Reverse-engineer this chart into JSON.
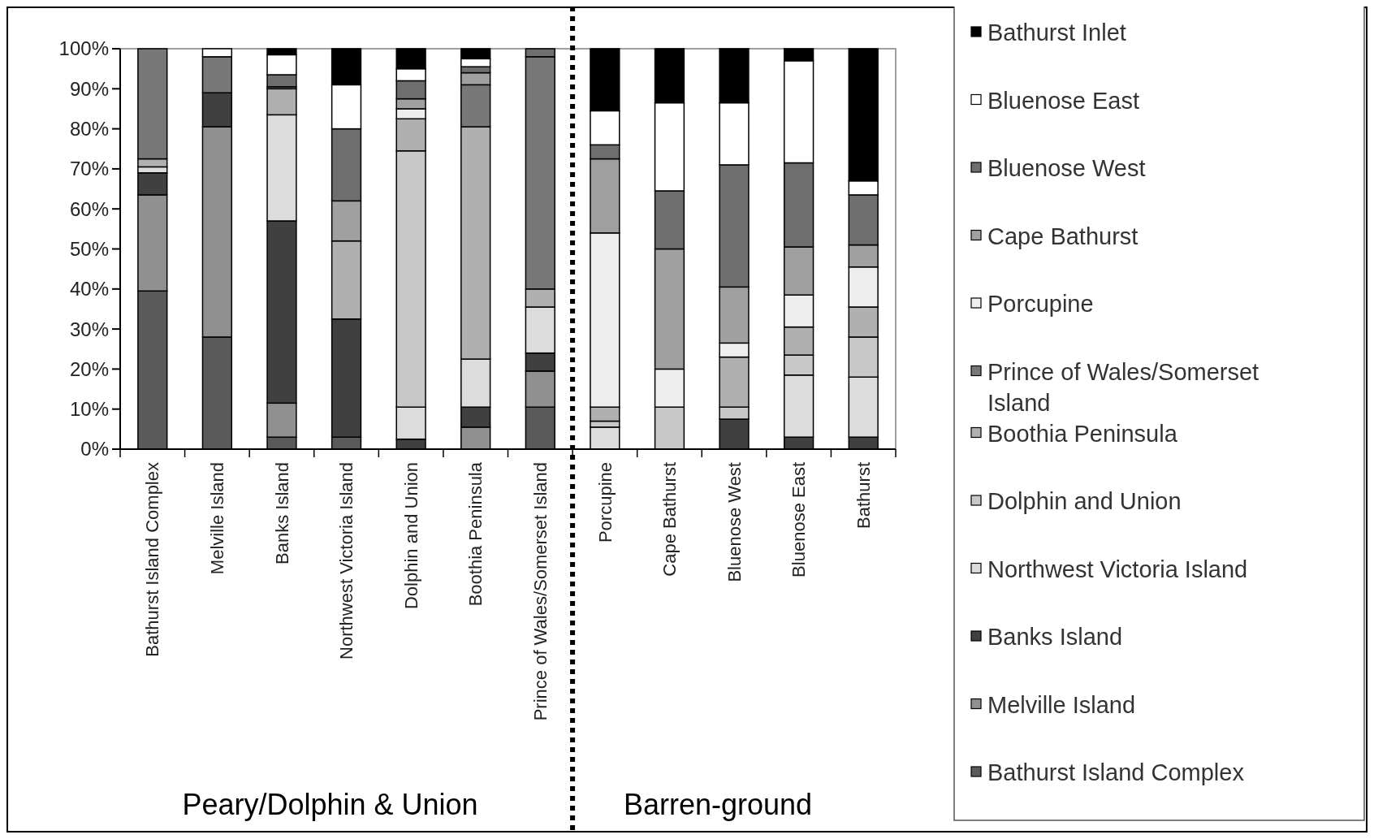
{
  "chart_data": {
    "type": "bar",
    "stacked": true,
    "legend": "right",
    "grid": false,
    "categories": [
      "Bathurst Island Complex",
      "Melville Island",
      "Banks Island",
      "Northwest Victoria Island",
      "Dolphin and Union",
      "Boothia Peninsula",
      "Prince of Wales/Somerset Island",
      "Porcupine",
      "Cape Bathurst",
      "Bluenose West",
      "Bluenose East",
      "Bathurst"
    ],
    "ylim": [
      0,
      100
    ],
    "yticks": [
      {
        "value": 0,
        "label": "0%"
      },
      {
        "value": 10,
        "label": "10%"
      },
      {
        "value": 20,
        "label": "20%"
      },
      {
        "value": 30,
        "label": "30%"
      },
      {
        "value": 40,
        "label": "40%"
      },
      {
        "value": 50,
        "label": "50%"
      },
      {
        "value": 60,
        "label": "60%"
      },
      {
        "value": 70,
        "label": "70%"
      },
      {
        "value": 80,
        "label": "80%"
      },
      {
        "value": 90,
        "label": "90%"
      },
      {
        "value": 100,
        "label": "100%"
      }
    ],
    "annotations": [
      "Peary/Dolphin & Union",
      "Barren-ground"
    ],
    "series": [
      {
        "name": "Bathurst Island Complex",
        "color": "#5a5a5a",
        "values": [
          39.5,
          28,
          3,
          3,
          null,
          null,
          10.5,
          null,
          null,
          null,
          null,
          null
        ]
      },
      {
        "name": "Melville Island",
        "color": "#909090",
        "values": [
          24,
          52.5,
          8.5,
          null,
          null,
          5.5,
          9,
          null,
          null,
          null,
          null,
          null
        ]
      },
      {
        "name": "Banks Island",
        "color": "#404040",
        "values": [
          5.5,
          8.5,
          45.5,
          29.5,
          2.5,
          5,
          4.5,
          null,
          null,
          7.5,
          3,
          3
        ]
      },
      {
        "name": "Northwest Victoria Island",
        "color": "#dcdcdc",
        "values": [
          1.5,
          null,
          26.5,
          null,
          8,
          12,
          11.5,
          5.5,
          null,
          null,
          15.5,
          15
        ]
      },
      {
        "name": "Dolphin and Union",
        "color": "#c8c8c8",
        "values": [
          null,
          null,
          null,
          null,
          64,
          null,
          null,
          1.5,
          10.5,
          3,
          5,
          10
        ]
      },
      {
        "name": "Boothia Peninsula",
        "color": "#b0b0b0",
        "values": [
          2,
          null,
          6.5,
          19.5,
          8,
          58,
          4.5,
          3.5,
          null,
          12.5,
          7,
          7.5
        ]
      },
      {
        "name": "Prince of Wales/Somerset Island",
        "color": "#787878",
        "values": [
          27.5,
          9,
          0.5,
          null,
          null,
          10.5,
          58,
          null,
          null,
          null,
          null,
          null
        ]
      },
      {
        "name": "Porcupine",
        "color": "#eeeeee",
        "values": [
          null,
          null,
          null,
          null,
          2.5,
          null,
          null,
          43.5,
          9.5,
          3.5,
          8,
          10
        ]
      },
      {
        "name": "Cape Bathurst",
        "color": "#a0a0a0",
        "values": [
          null,
          null,
          null,
          10,
          2.5,
          3,
          null,
          18.5,
          30,
          14,
          12,
          5.5
        ]
      },
      {
        "name": "Bluenose West",
        "color": "#6e6e6e",
        "values": [
          null,
          null,
          3,
          18,
          4.5,
          1.5,
          2,
          3.5,
          14.5,
          30.5,
          21,
          12.5
        ]
      },
      {
        "name": "Bluenose East",
        "color": "#ffffff",
        "values": [
          null,
          2,
          5,
          11,
          3,
          2,
          null,
          8.5,
          22,
          15.5,
          25.5,
          3.5
        ]
      },
      {
        "name": "Bathurst Inlet",
        "color": "#000000",
        "values": [
          null,
          null,
          1.5,
          9,
          5,
          2.5,
          null,
          15.5,
          13.5,
          13.5,
          3,
          33
        ]
      }
    ]
  }
}
